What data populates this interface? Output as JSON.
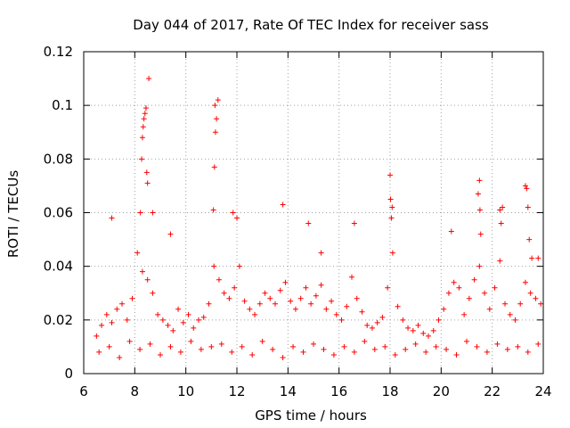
{
  "chart_data": {
    "type": "scatter",
    "title": "Day 044 of 2017, Rate Of TEC Index for receiver sass",
    "xlabel": "GPS time / hours",
    "ylabel": "ROTI / TECUs",
    "xlim": [
      6,
      24
    ],
    "ylim": [
      0,
      0.12
    ],
    "xticks": [
      6,
      8,
      10,
      12,
      14,
      16,
      18,
      20,
      22,
      24
    ],
    "xtick_labels": [
      "6",
      "8",
      "10",
      "12",
      "14",
      "16",
      "18",
      "20",
      "22",
      "24"
    ],
    "yticks": [
      0,
      0.02,
      0.04,
      0.06,
      0.08,
      0.1,
      0.12
    ],
    "ytick_labels": [
      "0",
      "0.02",
      "0.04",
      "0.06",
      "0.08",
      "0.1",
      "0.12"
    ],
    "grid": true,
    "marker": "plus",
    "color": "#ff0000",
    "series": [
      {
        "name": "ROTI",
        "x": [
          6.5,
          6.7,
          6.9,
          7.1,
          7.3,
          7.5,
          7.7,
          7.9,
          8.1,
          8.3,
          8.5,
          8.7,
          8.9,
          9.1,
          9.3,
          9.5,
          9.7,
          9.9,
          10.1,
          10.3,
          10.5,
          10.7,
          10.9,
          11.1,
          11.3,
          11.5,
          11.7,
          11.9,
          12.1,
          12.3,
          12.5,
          12.7,
          12.9,
          13.1,
          13.3,
          13.5,
          13.7,
          13.9,
          14.1,
          14.3,
          14.5,
          14.7,
          14.9,
          15.1,
          15.3,
          15.5,
          15.7,
          15.9,
          16.1,
          16.3,
          16.5,
          16.7,
          16.9,
          17.1,
          17.3,
          17.5,
          17.7,
          17.9,
          18.1,
          18.3,
          18.5,
          18.7,
          18.9,
          19.1,
          19.3,
          19.5,
          19.7,
          19.9,
          20.1,
          20.3,
          20.5,
          20.7,
          20.9,
          21.1,
          21.3,
          21.5,
          21.7,
          21.9,
          22.1,
          22.3,
          22.5,
          22.7,
          22.9,
          23.1,
          23.3,
          23.5,
          23.7,
          23.9,
          6.6,
          7.0,
          7.4,
          7.8,
          8.2,
          8.6,
          9.0,
          9.4,
          9.8,
          10.2,
          10.6,
          11.0,
          11.4,
          11.8,
          12.2,
          12.6,
          13.0,
          13.4,
          13.8,
          14.2,
          14.6,
          15.0,
          15.4,
          15.8,
          16.2,
          16.6,
          17.0,
          17.4,
          17.8,
          18.2,
          18.6,
          19.0,
          19.4,
          19.8,
          20.2,
          20.6,
          21.0,
          21.4,
          21.8,
          22.2,
          22.6,
          23.0,
          23.4,
          23.8,
          8.22,
          8.27,
          8.3,
          8.33,
          8.36,
          8.4,
          8.44,
          8.47,
          8.5,
          8.55,
          11.08,
          11.12,
          11.14,
          11.16,
          11.2,
          11.26,
          18.0,
          18.02,
          18.05,
          18.08,
          21.45,
          21.5,
          21.52,
          21.55,
          22.3,
          22.35,
          22.4,
          23.3,
          23.35,
          23.4,
          23.45,
          23.55,
          7.1,
          8.7,
          9.4,
          11.85,
          12.0,
          13.8,
          14.8,
          15.3,
          16.6,
          20.4,
          23.8
        ],
        "y": [
          0.014,
          0.018,
          0.022,
          0.019,
          0.024,
          0.026,
          0.02,
          0.028,
          0.045,
          0.038,
          0.035,
          0.03,
          0.022,
          0.02,
          0.018,
          0.016,
          0.024,
          0.019,
          0.022,
          0.017,
          0.02,
          0.021,
          0.026,
          0.04,
          0.035,
          0.03,
          0.028,
          0.032,
          0.04,
          0.027,
          0.024,
          0.022,
          0.026,
          0.03,
          0.028,
          0.026,
          0.031,
          0.034,
          0.027,
          0.024,
          0.028,
          0.032,
          0.026,
          0.029,
          0.033,
          0.024,
          0.027,
          0.022,
          0.02,
          0.025,
          0.036,
          0.028,
          0.023,
          0.018,
          0.017,
          0.019,
          0.021,
          0.032,
          0.045,
          0.025,
          0.02,
          0.017,
          0.016,
          0.018,
          0.015,
          0.014,
          0.016,
          0.02,
          0.024,
          0.03,
          0.034,
          0.032,
          0.022,
          0.028,
          0.035,
          0.04,
          0.03,
          0.024,
          0.032,
          0.042,
          0.026,
          0.022,
          0.02,
          0.026,
          0.034,
          0.03,
          0.028,
          0.026,
          0.008,
          0.01,
          0.006,
          0.012,
          0.009,
          0.011,
          0.007,
          0.01,
          0.008,
          0.012,
          0.009,
          0.01,
          0.011,
          0.008,
          0.01,
          0.007,
          0.012,
          0.009,
          0.006,
          0.01,
          0.008,
          0.011,
          0.009,
          0.007,
          0.01,
          0.008,
          0.012,
          0.009,
          0.01,
          0.007,
          0.009,
          0.011,
          0.008,
          0.01,
          0.009,
          0.007,
          0.012,
          0.01,
          0.008,
          0.011,
          0.009,
          0.01,
          0.008,
          0.011,
          0.06,
          0.08,
          0.088,
          0.092,
          0.095,
          0.097,
          0.099,
          0.075,
          0.071,
          0.11,
          0.061,
          0.077,
          0.1,
          0.09,
          0.095,
          0.102,
          0.074,
          0.065,
          0.058,
          0.062,
          0.067,
          0.072,
          0.061,
          0.052,
          0.061,
          0.056,
          0.062,
          0.07,
          0.069,
          0.062,
          0.05,
          0.043,
          0.058,
          0.06,
          0.052,
          0.06,
          0.058,
          0.063,
          0.056,
          0.045,
          0.056,
          0.053,
          0.043
        ]
      }
    ]
  }
}
